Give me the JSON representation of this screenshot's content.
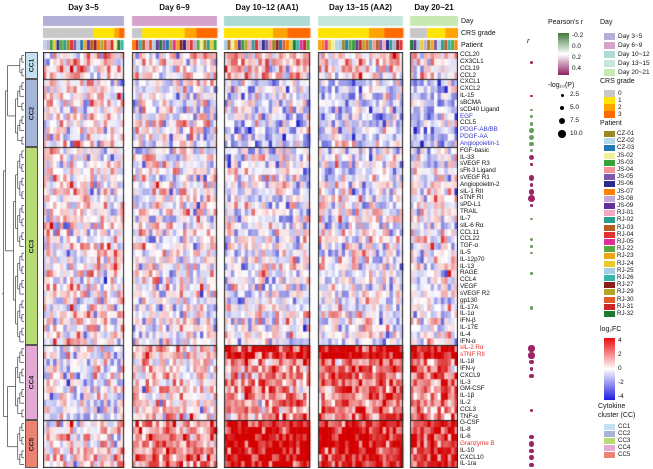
{
  "r_column_header": "r",
  "annotation_row_labels": [
    "Day",
    "CRS grade",
    "Patient"
  ],
  "chart_data": {
    "type": "heatmap",
    "description": "Cytokine log2FC heatmap across CAR-T therapy day bins, rows clustered into cytokine clusters CC1-CC5",
    "value_field": "log2FC",
    "value_range": [
      -4,
      4
    ],
    "column_groups": [
      {
        "label": "Day 3~5",
        "day_color": "#b4afd7",
        "n_samples": 24,
        "crs_fractions": [
          [
            "0",
            0.62
          ],
          [
            "1",
            0.26
          ],
          [
            "2",
            0.06
          ],
          [
            "3",
            0.06
          ]
        ]
      },
      {
        "label": "Day 6~9",
        "day_color": "#d6a3cc",
        "n_samples": 25,
        "crs_fractions": [
          [
            "0",
            0.12
          ],
          [
            "1",
            0.5
          ],
          [
            "2",
            0.14
          ],
          [
            "3",
            0.24
          ]
        ]
      },
      {
        "label": "Day 10~12 (AA1)",
        "day_color": "#aedcd4",
        "n_samples": 25,
        "crs_fractions": [
          [
            "1",
            0.57
          ],
          [
            "2",
            0.17
          ],
          [
            "3",
            0.26
          ]
        ]
      },
      {
        "label": "Day 13~15 (AA2)",
        "day_color": "#c6e8dc",
        "n_samples": 25,
        "crs_fractions": [
          [
            "1",
            0.6
          ],
          [
            "2",
            0.18
          ],
          [
            "3",
            0.22
          ]
        ]
      },
      {
        "label": "Day 20~21",
        "day_color": "#c8e9b4",
        "n_samples": 14,
        "crs_fractions": [
          [
            "0",
            0.36
          ],
          [
            "1",
            0.38
          ],
          [
            "2",
            0.26
          ]
        ]
      }
    ],
    "clusters": [
      {
        "id": "CC1",
        "color": "#c5e0f0",
        "block_means": [
          0.4,
          0.3,
          0.8,
          0.5,
          0.3
        ],
        "rows": [
          "CCL20",
          "CX3CL1",
          "CCL19",
          "CCL2"
        ]
      },
      {
        "id": "CC2",
        "color": "#a6b6d8",
        "block_means": [
          0.2,
          -0.1,
          -0.6,
          -0.7,
          -0.8
        ],
        "rows": [
          "CXCL1",
          "CXCL2",
          "IL-15",
          "sBCMA",
          "sCD40 Ligand",
          "EGF",
          "CCL5",
          "PDGF-AB/BB",
          "PDGF-AA",
          "Angiopoietin-1"
        ]
      },
      {
        "id": "CC3",
        "color": "#b8db76",
        "block_means": [
          0.15,
          -0.05,
          -0.15,
          -0.15,
          -0.1
        ],
        "rows": [
          "FGF-basic",
          "IL-33",
          "sVEGF R3",
          "sFlt-3 Ligand",
          "sVEGF R1",
          "Angiopoietin-2",
          "sIL-1 RII",
          "sTNF RI",
          "sPD-L1",
          "TRAIL",
          "IL-7",
          "sIL-6 Rα",
          "CCL11",
          "CCL22",
          "TGF-α",
          "IL-5",
          "IL-12p70",
          "IL-13",
          "RAGE",
          "CCL4",
          "VEGF",
          "sVEGF R2",
          "gp130",
          "IL-17A",
          "IL-1α",
          "IFN-β",
          "IL-17E",
          "IL-4",
          "IFN-α"
        ]
      },
      {
        "id": "CC4",
        "color": "#e3abd3",
        "block_means": [
          -0.3,
          0.4,
          1.4,
          1.7,
          1.6
        ],
        "rows": [
          "sIL-2 Rα",
          "sTNF RII",
          "IL-18",
          "IFN-γ",
          "CXCL9",
          "IL-3",
          "GM-CSF",
          "IL-1β",
          "IL-2",
          "CCL3",
          "TNF-α"
        ]
      },
      {
        "id": "CC5",
        "color": "#ec8273",
        "block_means": [
          0.4,
          1.2,
          2.4,
          2.2,
          2.0
        ],
        "rows": [
          "G-CSF",
          "IL-8",
          "IL-6",
          "Granzyme B",
          "IL-10",
          "CXCL10",
          "IL-1ra"
        ]
      }
    ],
    "row_label_colors": {
      "EGF": "#3c3ccf",
      "PDGF-AB/BB": "#3c3ccf",
      "PDGF-AA": "#3c3ccf",
      "Angiopoietin-1": "#3c3ccf",
      "sIL-2 Rα": "#e43333",
      "sTNF RII": "#e43333",
      "Granzyme B": "#e43333"
    },
    "row_boost": {
      "sIL-2 Rα": [
        0,
        0.5,
        1.2,
        1.2,
        1.2
      ],
      "sTNF RII": [
        0,
        0.5,
        1.2,
        1.2,
        1.2
      ],
      "Granzyme B": [
        0,
        0.3,
        0.9,
        0.9,
        0.9
      ],
      "IL-6": [
        0,
        0.3,
        0.8,
        0.8,
        0.6
      ],
      "IL-8": [
        0,
        0.3,
        0.8,
        0.8,
        0.6
      ],
      "IL-10": [
        0,
        0.2,
        0.6,
        0.6,
        0.6
      ],
      "CXCL10": [
        0,
        0.2,
        0.6,
        0.6,
        0.6
      ],
      "G-CSF": [
        0,
        0.2,
        0.5,
        0.5,
        0.4
      ],
      "IL-1ra": [
        0,
        0.2,
        0.5,
        0.5,
        0.5
      ]
    },
    "pearson_dots": {
      "CX3CL1": {
        "r": 0.25,
        "logp": 3.0
      },
      "IL-15": {
        "r": 0.15,
        "logp": 1.5
      },
      "sCD40 Ligand": {
        "r": -0.2,
        "logp": 2.5
      },
      "EGF": {
        "r": -0.2,
        "logp": 3.5
      },
      "CCL5": {
        "r": -0.25,
        "logp": 4.5
      },
      "PDGF-AB/BB": {
        "r": -0.3,
        "logp": 6.0
      },
      "PDGF-AA": {
        "r": -0.3,
        "logp": 7.0
      },
      "Angiopoietin-1": {
        "r": -0.25,
        "logp": 5.0
      },
      "FGF-basic": {
        "r": -0.2,
        "logp": 3.0
      },
      "IL-33": {
        "r": 0.35,
        "logp": 7.0
      },
      "sVEGF R3": {
        "r": 0.2,
        "logp": 2.0
      },
      "sVEGF R1": {
        "r": 0.35,
        "logp": 7.5
      },
      "Angiopoietin-2": {
        "r": 0.25,
        "logp": 3.0
      },
      "sIL-1 RII": {
        "r": 0.4,
        "logp": 8.0
      },
      "sTNF RI": {
        "r": 0.45,
        "logp": 10.0
      },
      "sPD-L1": {
        "r": 0.25,
        "logp": 2.5
      },
      "IL-7": {
        "r": -0.2,
        "logp": 2.5
      },
      "CCL22": {
        "r": -0.25,
        "logp": 4.5
      },
      "TGF-α": {
        "r": -0.15,
        "logp": 2.0
      },
      "IL-5": {
        "r": -0.15,
        "logp": 1.5
      },
      "RAGE": {
        "r": -0.2,
        "logp": 2.5
      },
      "IL-17A": {
        "r": -0.25,
        "logp": 4.0
      },
      "sIL-2 Rα": {
        "r": 0.45,
        "logp": 9.0
      },
      "sTNF RII": {
        "r": 0.45,
        "logp": 9.0
      },
      "IL-18": {
        "r": 0.3,
        "logp": 5.0
      },
      "IFN-γ": {
        "r": 0.3,
        "logp": 4.0
      },
      "CXCL9": {
        "r": 0.3,
        "logp": 5.0
      },
      "CCL3": {
        "r": 0.25,
        "logp": 3.0
      },
      "IL-6": {
        "r": 0.3,
        "logp": 5.0
      },
      "Granzyme B": {
        "r": 0.4,
        "logp": 8.0
      },
      "IL-10": {
        "r": 0.35,
        "logp": 6.0
      },
      "CXCL10": {
        "r": 0.35,
        "logp": 6.0
      },
      "IL-1ra": {
        "r": 0.3,
        "logp": 5.0
      }
    },
    "colormap": {
      "positive": "#d40000",
      "negative": "#1c1cc8",
      "zero": "#ffffff"
    },
    "dot_colors": {
      "positive": "#9c2566",
      "negative": "#6a9c62"
    }
  },
  "legends": {
    "pearson": {
      "title": "Pearson's r",
      "ticks": [
        "-0.2",
        "0.0",
        "0.2",
        "0.4"
      ],
      "top_color": "#3f7a37",
      "bottom_color": "#8e2060"
    },
    "logp": {
      "title": "-log₁₀(P)",
      "entries": [
        {
          "label": "2.5",
          "d": 3
        },
        {
          "label": "5.0",
          "d": 4.5
        },
        {
          "label": "7.5",
          "d": 6
        },
        {
          "label": "10.0",
          "d": 7.5
        }
      ]
    },
    "day": {
      "title": "Day",
      "entries": [
        {
          "label": "Day 3~5",
          "color": "#b4afd7"
        },
        {
          "label": "Day 6~9",
          "color": "#d6a3cc"
        },
        {
          "label": "Day 10~12",
          "color": "#aedcd4"
        },
        {
          "label": "Day 13~15",
          "color": "#c6e8dc"
        },
        {
          "label": "Day 20~21",
          "color": "#c8e9b4"
        }
      ]
    },
    "crs": {
      "title": "CRS grade",
      "entries": [
        {
          "label": "0",
          "color": "#c8c8c8"
        },
        {
          "label": "1",
          "color": "#ffe301"
        },
        {
          "label": "2",
          "color": "#ffa300"
        },
        {
          "label": "3",
          "color": "#fe6900"
        }
      ]
    },
    "patient": {
      "title": "Patient",
      "entries": [
        {
          "label": "CZ-01",
          "color": "#9a8822"
        },
        {
          "label": "CZ-02",
          "color": "#b5d7ea"
        },
        {
          "label": "CZ-03",
          "color": "#2277b4"
        },
        {
          "label": "JS-02",
          "color": "#f2ef9a"
        },
        {
          "label": "JS-03",
          "color": "#35a339"
        },
        {
          "label": "JS-04",
          "color": "#f59393"
        },
        {
          "label": "JS-05",
          "color": "#7e58ad"
        },
        {
          "label": "JS-06",
          "color": "#2c2c8a"
        },
        {
          "label": "JS-07",
          "color": "#ff8103"
        },
        {
          "label": "JS-08",
          "color": "#c4a7d8"
        },
        {
          "label": "JS-09",
          "color": "#63309a"
        },
        {
          "label": "RJ-01",
          "color": "#f2a7c5"
        },
        {
          "label": "RJ-02",
          "color": "#2a9d8f"
        },
        {
          "label": "RJ-03",
          "color": "#b65c23"
        },
        {
          "label": "RJ-04",
          "color": "#e33131"
        },
        {
          "label": "RJ-05",
          "color": "#e12d9a"
        },
        {
          "label": "RJ-22",
          "color": "#57a843"
        },
        {
          "label": "RJ-23",
          "color": "#f0a513"
        },
        {
          "label": "RJ-24",
          "color": "#ecc92c"
        },
        {
          "label": "RJ-25",
          "color": "#a4cee5"
        },
        {
          "label": "RJ-26",
          "color": "#35b6a8"
        },
        {
          "label": "RJ-27",
          "color": "#8c1d1d"
        },
        {
          "label": "RJ-29",
          "color": "#b2a626"
        },
        {
          "label": "RJ-30",
          "color": "#e25c2b"
        },
        {
          "label": "RJ-31",
          "color": "#cc2525"
        },
        {
          "label": "RJ-32",
          "color": "#1d7a33"
        }
      ]
    },
    "fc": {
      "title": "log₂FC",
      "ticks": [
        "4",
        "2",
        "0",
        "-2",
        "-4"
      ],
      "top_color": "#e90c0c",
      "bottom_color": "#1c1cdf"
    },
    "cc": {
      "title_line1": "Cytokine",
      "title_line2": "cluster (CC)",
      "entries": [
        {
          "label": "CC1",
          "color": "#c5e0f0"
        },
        {
          "label": "CC2",
          "color": "#a6b6d8"
        },
        {
          "label": "CC3",
          "color": "#b8db76"
        },
        {
          "label": "CC4",
          "color": "#e3abd3"
        },
        {
          "label": "CC5",
          "color": "#ec8273"
        }
      ]
    }
  }
}
